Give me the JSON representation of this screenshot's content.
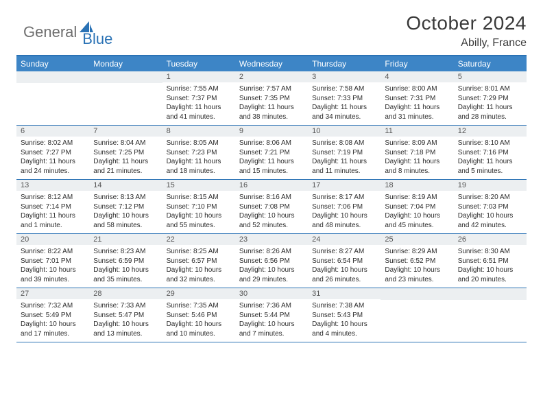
{
  "brand": {
    "part1": "General",
    "part2": "Blue"
  },
  "title": "October 2024",
  "location": "Abilly, France",
  "colors": {
    "header_bar": "#3d85c6",
    "rule": "#2a72b5",
    "daynum_bg": "#eceff1",
    "text": "#2b2b2b",
    "logo_gray": "#6e6e6e",
    "logo_blue": "#2a72b5"
  },
  "dow": [
    "Sunday",
    "Monday",
    "Tuesday",
    "Wednesday",
    "Thursday",
    "Friday",
    "Saturday"
  ],
  "weeks": [
    [
      null,
      null,
      {
        "n": "1",
        "sr": "7:55 AM",
        "ss": "7:37 PM",
        "dl": "11 hours and 41 minutes."
      },
      {
        "n": "2",
        "sr": "7:57 AM",
        "ss": "7:35 PM",
        "dl": "11 hours and 38 minutes."
      },
      {
        "n": "3",
        "sr": "7:58 AM",
        "ss": "7:33 PM",
        "dl": "11 hours and 34 minutes."
      },
      {
        "n": "4",
        "sr": "8:00 AM",
        "ss": "7:31 PM",
        "dl": "11 hours and 31 minutes."
      },
      {
        "n": "5",
        "sr": "8:01 AM",
        "ss": "7:29 PM",
        "dl": "11 hours and 28 minutes."
      }
    ],
    [
      {
        "n": "6",
        "sr": "8:02 AM",
        "ss": "7:27 PM",
        "dl": "11 hours and 24 minutes."
      },
      {
        "n": "7",
        "sr": "8:04 AM",
        "ss": "7:25 PM",
        "dl": "11 hours and 21 minutes."
      },
      {
        "n": "8",
        "sr": "8:05 AM",
        "ss": "7:23 PM",
        "dl": "11 hours and 18 minutes."
      },
      {
        "n": "9",
        "sr": "8:06 AM",
        "ss": "7:21 PM",
        "dl": "11 hours and 15 minutes."
      },
      {
        "n": "10",
        "sr": "8:08 AM",
        "ss": "7:19 PM",
        "dl": "11 hours and 11 minutes."
      },
      {
        "n": "11",
        "sr": "8:09 AM",
        "ss": "7:18 PM",
        "dl": "11 hours and 8 minutes."
      },
      {
        "n": "12",
        "sr": "8:10 AM",
        "ss": "7:16 PM",
        "dl": "11 hours and 5 minutes."
      }
    ],
    [
      {
        "n": "13",
        "sr": "8:12 AM",
        "ss": "7:14 PM",
        "dl": "11 hours and 1 minute."
      },
      {
        "n": "14",
        "sr": "8:13 AM",
        "ss": "7:12 PM",
        "dl": "10 hours and 58 minutes."
      },
      {
        "n": "15",
        "sr": "8:15 AM",
        "ss": "7:10 PM",
        "dl": "10 hours and 55 minutes."
      },
      {
        "n": "16",
        "sr": "8:16 AM",
        "ss": "7:08 PM",
        "dl": "10 hours and 52 minutes."
      },
      {
        "n": "17",
        "sr": "8:17 AM",
        "ss": "7:06 PM",
        "dl": "10 hours and 48 minutes."
      },
      {
        "n": "18",
        "sr": "8:19 AM",
        "ss": "7:04 PM",
        "dl": "10 hours and 45 minutes."
      },
      {
        "n": "19",
        "sr": "8:20 AM",
        "ss": "7:03 PM",
        "dl": "10 hours and 42 minutes."
      }
    ],
    [
      {
        "n": "20",
        "sr": "8:22 AM",
        "ss": "7:01 PM",
        "dl": "10 hours and 39 minutes."
      },
      {
        "n": "21",
        "sr": "8:23 AM",
        "ss": "6:59 PM",
        "dl": "10 hours and 35 minutes."
      },
      {
        "n": "22",
        "sr": "8:25 AM",
        "ss": "6:57 PM",
        "dl": "10 hours and 32 minutes."
      },
      {
        "n": "23",
        "sr": "8:26 AM",
        "ss": "6:56 PM",
        "dl": "10 hours and 29 minutes."
      },
      {
        "n": "24",
        "sr": "8:27 AM",
        "ss": "6:54 PM",
        "dl": "10 hours and 26 minutes."
      },
      {
        "n": "25",
        "sr": "8:29 AM",
        "ss": "6:52 PM",
        "dl": "10 hours and 23 minutes."
      },
      {
        "n": "26",
        "sr": "8:30 AM",
        "ss": "6:51 PM",
        "dl": "10 hours and 20 minutes."
      }
    ],
    [
      {
        "n": "27",
        "sr": "7:32 AM",
        "ss": "5:49 PM",
        "dl": "10 hours and 17 minutes."
      },
      {
        "n": "28",
        "sr": "7:33 AM",
        "ss": "5:47 PM",
        "dl": "10 hours and 13 minutes."
      },
      {
        "n": "29",
        "sr": "7:35 AM",
        "ss": "5:46 PM",
        "dl": "10 hours and 10 minutes."
      },
      {
        "n": "30",
        "sr": "7:36 AM",
        "ss": "5:44 PM",
        "dl": "10 hours and 7 minutes."
      },
      {
        "n": "31",
        "sr": "7:38 AM",
        "ss": "5:43 PM",
        "dl": "10 hours and 4 minutes."
      },
      null,
      null
    ]
  ],
  "labels": {
    "sunrise": "Sunrise:",
    "sunset": "Sunset:",
    "daylight": "Daylight:"
  }
}
